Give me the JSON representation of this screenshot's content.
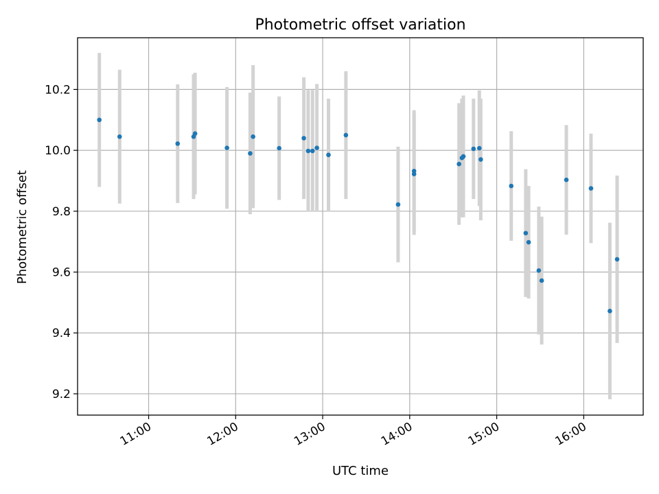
{
  "chart_data": {
    "type": "scatter",
    "title": "Photometric offset variation",
    "xlabel": "UTC time",
    "ylabel": "Photometric offset",
    "x_tick_labels": [
      "11:00",
      "12:00",
      "13:00",
      "14:00",
      "15:00",
      "16:00"
    ],
    "y_tick_labels": [
      "9.2",
      "9.4",
      "9.6",
      "9.8",
      "10.0",
      "10.2"
    ],
    "xlim": [
      "10:11",
      "16:41"
    ],
    "ylim": [
      9.13,
      10.37
    ],
    "grid": true,
    "colors": {
      "point": "#1f77b4",
      "errorbar": "#d3d3d3"
    },
    "points": [
      {
        "x": "10:26",
        "y": 10.1,
        "err": 0.22
      },
      {
        "x": "10:40",
        "y": 10.045,
        "err": 0.22
      },
      {
        "x": "11:20",
        "y": 10.022,
        "err": 0.195
      },
      {
        "x": "11:31",
        "y": 10.045,
        "err": 0.205
      },
      {
        "x": "11:32",
        "y": 10.055,
        "err": 0.2
      },
      {
        "x": "11:54",
        "y": 10.008,
        "err": 0.2
      },
      {
        "x": "12:10",
        "y": 9.99,
        "err": 0.2
      },
      {
        "x": "12:12",
        "y": 10.045,
        "err": 0.235
      },
      {
        "x": "12:30",
        "y": 10.007,
        "err": 0.17
      },
      {
        "x": "12:47",
        "y": 10.04,
        "err": 0.2
      },
      {
        "x": "12:50",
        "y": 9.998,
        "err": 0.2
      },
      {
        "x": "12:53",
        "y": 9.998,
        "err": 0.2
      },
      {
        "x": "12:56",
        "y": 10.008,
        "err": 0.21
      },
      {
        "x": "13:04",
        "y": 9.985,
        "err": 0.185
      },
      {
        "x": "13:16",
        "y": 10.05,
        "err": 0.21
      },
      {
        "x": "13:52",
        "y": 9.822,
        "err": 0.19
      },
      {
        "x": "14:03",
        "y": 9.922,
        "err": 0.2
      },
      {
        "x": "14:03",
        "y": 9.932,
        "err": 0.2
      },
      {
        "x": "14:34",
        "y": 9.955,
        "err": 0.2
      },
      {
        "x": "14:36",
        "y": 9.975,
        "err": 0.195
      },
      {
        "x": "14:37",
        "y": 9.98,
        "err": 0.2
      },
      {
        "x": "14:44",
        "y": 10.005,
        "err": 0.165
      },
      {
        "x": "14:48",
        "y": 10.007,
        "err": 0.19
      },
      {
        "x": "14:49",
        "y": 9.97,
        "err": 0.2
      },
      {
        "x": "15:10",
        "y": 9.883,
        "err": 0.18
      },
      {
        "x": "15:20",
        "y": 9.728,
        "err": 0.21
      },
      {
        "x": "15:22",
        "y": 9.698,
        "err": 0.185
      },
      {
        "x": "15:29",
        "y": 9.605,
        "err": 0.21
      },
      {
        "x": "15:31",
        "y": 9.572,
        "err": 0.21
      },
      {
        "x": "15:48",
        "y": 9.903,
        "err": 0.18
      },
      {
        "x": "16:05",
        "y": 9.875,
        "err": 0.18
      },
      {
        "x": "16:18",
        "y": 9.472,
        "err": 0.29
      },
      {
        "x": "16:23",
        "y": 9.642,
        "err": 0.275
      }
    ]
  }
}
